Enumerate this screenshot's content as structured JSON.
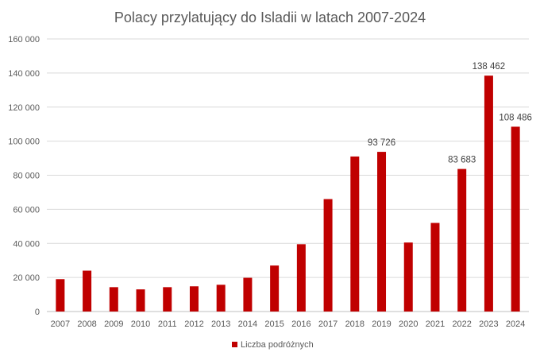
{
  "chart_data": {
    "type": "bar",
    "title": "Polacy przylatujący do Isladii w latach 2007-2024",
    "xlabel": "",
    "ylabel": "",
    "categories": [
      "2007",
      "2008",
      "2009",
      "2010",
      "2011",
      "2012",
      "2013",
      "2014",
      "2015",
      "2016",
      "2017",
      "2018",
      "2019",
      "2020",
      "2021",
      "2022",
      "2023",
      "2024"
    ],
    "series": [
      {
        "name": "Liczba podróżnych",
        "color": "#c00000",
        "values": [
          19000,
          24000,
          14300,
          13000,
          14300,
          14800,
          15700,
          19800,
          27000,
          39500,
          66000,
          91000,
          93726,
          40500,
          52000,
          83683,
          138462,
          108486
        ]
      }
    ],
    "data_labels": [
      {
        "category": "2019",
        "text": "93 726"
      },
      {
        "category": "2022",
        "text": "83 683"
      },
      {
        "category": "2023",
        "text": "138 462"
      },
      {
        "category": "2024",
        "text": "108 486"
      }
    ],
    "ylim": [
      0,
      160000
    ],
    "yticks": [
      {
        "value": 0,
        "label": "0"
      },
      {
        "value": 20000,
        "label": "20 000"
      },
      {
        "value": 40000,
        "label": "40 000"
      },
      {
        "value": 60000,
        "label": "60 000"
      },
      {
        "value": 80000,
        "label": "80 000"
      },
      {
        "value": 100000,
        "label": "100 000"
      },
      {
        "value": 120000,
        "label": "120 000"
      },
      {
        "value": 140000,
        "label": "140 000"
      },
      {
        "value": 160000,
        "label": "160 000"
      }
    ],
    "grid": true,
    "legend_position": "bottom"
  }
}
